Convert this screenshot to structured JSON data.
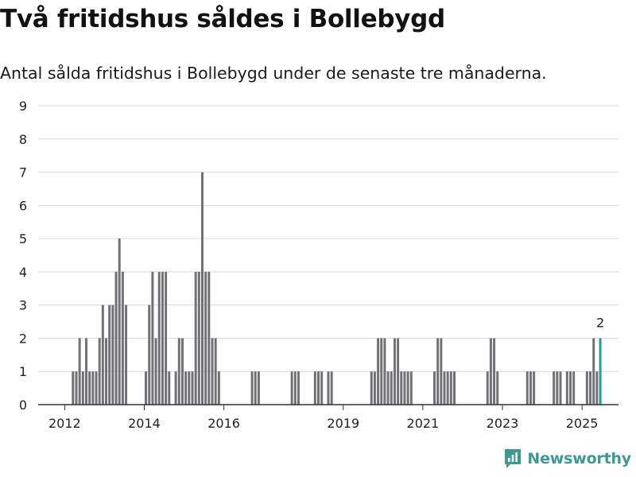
{
  "header": {
    "title": "Två fritidshus såldes i Bollebygd",
    "subtitle": "Antal sålda fritidshus i Bollebygd under de senaste tre månaderna."
  },
  "brand": {
    "name": "Newsworthy",
    "icon": "newsworthy-logo-icon",
    "color": "#3d9a93"
  },
  "colors": {
    "bar": "#707075",
    "highlight": "#1f9e94",
    "grid": "#d9d9d9",
    "axis": "#333333"
  },
  "chart_data": {
    "type": "bar",
    "title": "Två fritidshus såldes i Bollebygd",
    "subtitle": "Antal sålda fritidshus i Bollebygd under de senaste tre månaderna.",
    "xlabel": "",
    "ylabel": "",
    "ylim": [
      0,
      9
    ],
    "yticks": [
      0,
      1,
      2,
      3,
      4,
      5,
      6,
      7,
      8,
      9
    ],
    "xticks": [
      "2012",
      "2014",
      "2016",
      "2019",
      "2021",
      "2023",
      "2025"
    ],
    "xlim": [
      "2011-05",
      "2025-12"
    ],
    "grid": true,
    "highlight_label": "2",
    "series": [
      {
        "values": [
          {
            "x": "2012-03",
            "y": 1
          },
          {
            "x": "2012-04",
            "y": 1
          },
          {
            "x": "2012-05",
            "y": 2
          },
          {
            "x": "2012-06",
            "y": 1
          },
          {
            "x": "2012-07",
            "y": 2
          },
          {
            "x": "2012-08",
            "y": 1
          },
          {
            "x": "2012-09",
            "y": 1
          },
          {
            "x": "2012-10",
            "y": 1
          },
          {
            "x": "2012-11",
            "y": 2
          },
          {
            "x": "2012-12",
            "y": 3
          },
          {
            "x": "2013-01",
            "y": 2
          },
          {
            "x": "2013-02",
            "y": 3
          },
          {
            "x": "2013-03",
            "y": 3
          },
          {
            "x": "2013-04",
            "y": 4
          },
          {
            "x": "2013-05",
            "y": 5
          },
          {
            "x": "2013-06",
            "y": 4
          },
          {
            "x": "2013-07",
            "y": 3
          },
          {
            "x": "2014-01",
            "y": 1
          },
          {
            "x": "2014-02",
            "y": 3
          },
          {
            "x": "2014-03",
            "y": 4
          },
          {
            "x": "2014-04",
            "y": 2
          },
          {
            "x": "2014-05",
            "y": 4
          },
          {
            "x": "2014-06",
            "y": 4
          },
          {
            "x": "2014-07",
            "y": 4
          },
          {
            "x": "2014-08",
            "y": 1
          },
          {
            "x": "2014-10",
            "y": 1
          },
          {
            "x": "2014-11",
            "y": 2
          },
          {
            "x": "2014-12",
            "y": 2
          },
          {
            "x": "2015-01",
            "y": 1
          },
          {
            "x": "2015-02",
            "y": 1
          },
          {
            "x": "2015-03",
            "y": 1
          },
          {
            "x": "2015-04",
            "y": 4
          },
          {
            "x": "2015-05",
            "y": 4
          },
          {
            "x": "2015-06",
            "y": 7
          },
          {
            "x": "2015-07",
            "y": 4
          },
          {
            "x": "2015-08",
            "y": 4
          },
          {
            "x": "2015-09",
            "y": 2
          },
          {
            "x": "2015-10",
            "y": 2
          },
          {
            "x": "2015-11",
            "y": 1
          },
          {
            "x": "2016-09",
            "y": 1
          },
          {
            "x": "2016-10",
            "y": 1
          },
          {
            "x": "2016-11",
            "y": 1
          },
          {
            "x": "2017-09",
            "y": 1
          },
          {
            "x": "2017-10",
            "y": 1
          },
          {
            "x": "2017-11",
            "y": 1
          },
          {
            "x": "2018-04",
            "y": 1
          },
          {
            "x": "2018-05",
            "y": 1
          },
          {
            "x": "2018-06",
            "y": 1
          },
          {
            "x": "2018-08",
            "y": 1
          },
          {
            "x": "2018-09",
            "y": 1
          },
          {
            "x": "2019-09",
            "y": 1
          },
          {
            "x": "2019-10",
            "y": 1
          },
          {
            "x": "2019-11",
            "y": 2
          },
          {
            "x": "2019-12",
            "y": 2
          },
          {
            "x": "2020-01",
            "y": 2
          },
          {
            "x": "2020-02",
            "y": 1
          },
          {
            "x": "2020-03",
            "y": 1
          },
          {
            "x": "2020-04",
            "y": 2
          },
          {
            "x": "2020-05",
            "y": 2
          },
          {
            "x": "2020-06",
            "y": 1
          },
          {
            "x": "2020-07",
            "y": 1
          },
          {
            "x": "2020-08",
            "y": 1
          },
          {
            "x": "2020-09",
            "y": 1
          },
          {
            "x": "2021-04",
            "y": 1
          },
          {
            "x": "2021-05",
            "y": 2
          },
          {
            "x": "2021-06",
            "y": 2
          },
          {
            "x": "2021-07",
            "y": 1
          },
          {
            "x": "2021-08",
            "y": 1
          },
          {
            "x": "2021-09",
            "y": 1
          },
          {
            "x": "2021-10",
            "y": 1
          },
          {
            "x": "2022-08",
            "y": 1
          },
          {
            "x": "2022-09",
            "y": 2
          },
          {
            "x": "2022-10",
            "y": 2
          },
          {
            "x": "2022-11",
            "y": 1
          },
          {
            "x": "2023-08",
            "y": 1
          },
          {
            "x": "2023-09",
            "y": 1
          },
          {
            "x": "2023-10",
            "y": 1
          },
          {
            "x": "2024-04",
            "y": 1
          },
          {
            "x": "2024-05",
            "y": 1
          },
          {
            "x": "2024-06",
            "y": 1
          },
          {
            "x": "2024-08",
            "y": 1
          },
          {
            "x": "2024-09",
            "y": 1
          },
          {
            "x": "2024-10",
            "y": 1
          },
          {
            "x": "2025-02",
            "y": 1
          },
          {
            "x": "2025-03",
            "y": 1
          },
          {
            "x": "2025-04",
            "y": 2
          },
          {
            "x": "2025-05",
            "y": 1
          },
          {
            "x": "2025-06",
            "y": 2,
            "highlight": true
          }
        ]
      }
    ]
  }
}
